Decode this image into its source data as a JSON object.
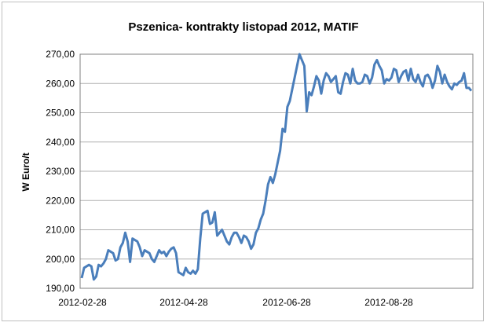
{
  "chart_data": {
    "type": "line",
    "title": "Pszenica- kontrakty listopad 2012, MATIF",
    "xlabel": "",
    "ylabel": "W Euro/t",
    "ylim": [
      190,
      270
    ],
    "yticks": [
      "190,00",
      "200,00",
      "210,00",
      "220,00",
      "230,00",
      "240,00",
      "250,00",
      "260,00",
      "270,00"
    ],
    "xticks": [
      "2012-02-28",
      "2012-04-28",
      "2012-06-28",
      "2012-08-28"
    ],
    "grid": true,
    "legend": "none",
    "line_color": "#4a7ebb",
    "series": [
      {
        "values": [
          193.5,
          197,
          197.5,
          198,
          197.5,
          193,
          194,
          198,
          197.5,
          198.5,
          200,
          203,
          202.5,
          202,
          199.5,
          200,
          204,
          205.5,
          209,
          206,
          199,
          207,
          206.5,
          206,
          204,
          201,
          203,
          202.5,
          202,
          200,
          199,
          201,
          203,
          202,
          202.5,
          201,
          202.5,
          203.5,
          204,
          202,
          195.5,
          195,
          194.5,
          197,
          195.5,
          195,
          196,
          195,
          196.5,
          207,
          215.5,
          216,
          216.5,
          212,
          212.5,
          216,
          208,
          209,
          210,
          208,
          206,
          205,
          207.5,
          209,
          209,
          207.5,
          205.5,
          208,
          207.5,
          206,
          203.5,
          205,
          209,
          210.5,
          213.5,
          215.5,
          220,
          225.5,
          228,
          226,
          229,
          233,
          237,
          244.5,
          243.5,
          252,
          254,
          258,
          262,
          266,
          270,
          268,
          266,
          250.5,
          257,
          256,
          259,
          262.5,
          261,
          256.5,
          261,
          263.5,
          262.5,
          260.5,
          261.5,
          262.5,
          257,
          256.5,
          260.5,
          263.5,
          263,
          260,
          265,
          261,
          260,
          260,
          260.5,
          263,
          262.5,
          260,
          262,
          266.5,
          268,
          266,
          264.5,
          260,
          261.5,
          261,
          262,
          265,
          264.5,
          260.5,
          262.5,
          264,
          264.5,
          261,
          265,
          261.5,
          260.5,
          263,
          260.5,
          259,
          262.5,
          263,
          261.5,
          258.5,
          261,
          266,
          264,
          260,
          263,
          260.5,
          259,
          258,
          260,
          259.5,
          260.5,
          261,
          263.5,
          258.5,
          258.5,
          257.5
        ]
      }
    ]
  }
}
